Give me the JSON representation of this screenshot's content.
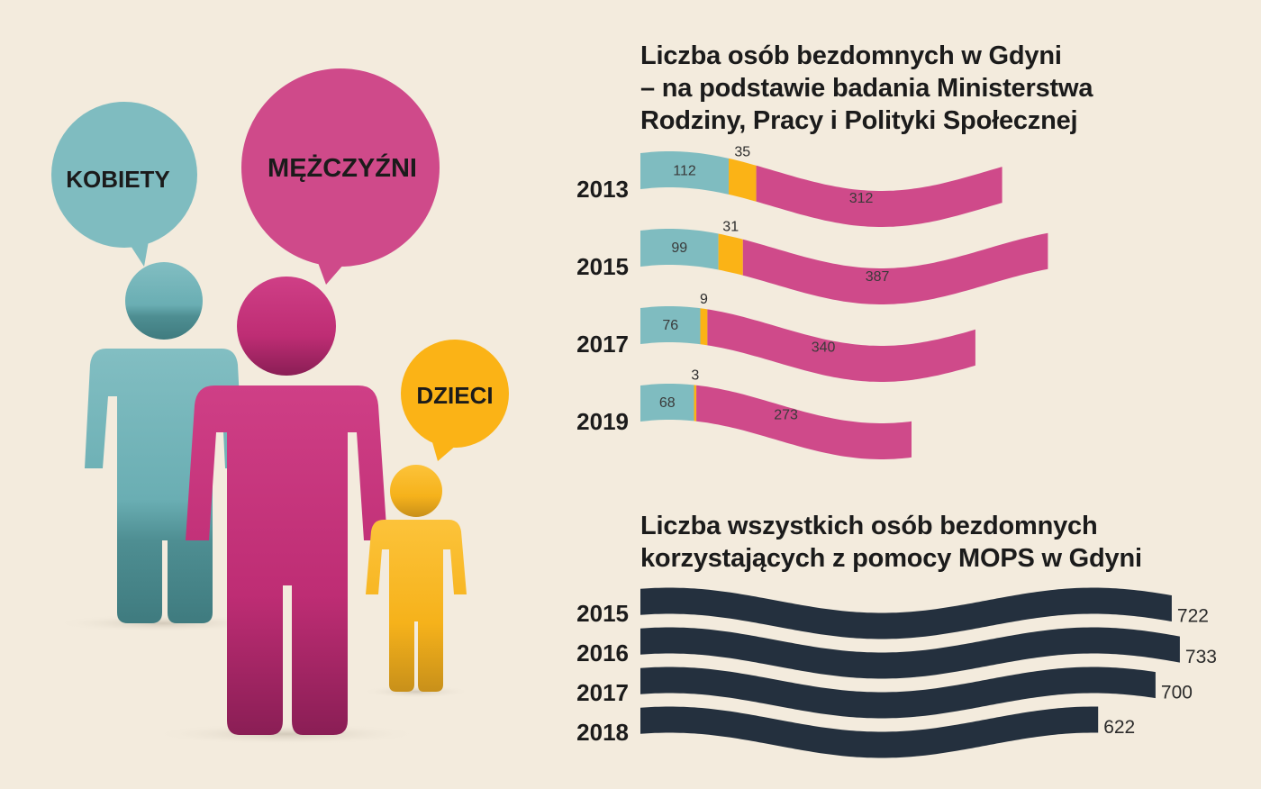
{
  "illustration": {
    "bubble_women": "KOBIETY",
    "bubble_men": "MĘŻCZYŹNI",
    "bubble_children": "DZIECI",
    "colors": {
      "women": "#7fbcc0",
      "men": "#cf4a8a",
      "children": "#fbb316"
    }
  },
  "chart_data": [
    {
      "type": "bar",
      "stacked": true,
      "orientation": "horizontal",
      "title_lines": [
        "Liczba osób bezdomnych w Gdyni",
        "– na podstawie badania Ministerstwa",
        "Rodziny, Pracy i Polityki Społecznej"
      ],
      "categories": [
        "2013",
        "2015",
        "2017",
        "2019"
      ],
      "series": [
        {
          "key": "women",
          "color": "#7fbcc0",
          "values": [
            112,
            99,
            76,
            68
          ]
        },
        {
          "key": "children",
          "color": "#fbb316",
          "values": [
            35,
            31,
            9,
            3
          ]
        },
        {
          "key": "men",
          "color": "#cf4a8a",
          "values": [
            312,
            387,
            340,
            273
          ]
        }
      ]
    },
    {
      "type": "bar",
      "orientation": "horizontal",
      "title_lines": [
        "Liczba wszystkich osób bezdomnych",
        "korzystających z pomocy MOPS w Gdyni"
      ],
      "categories": [
        "2015",
        "2016",
        "2017",
        "2018"
      ],
      "values": [
        722,
        733,
        700,
        622
      ],
      "color": "#24303e"
    }
  ]
}
